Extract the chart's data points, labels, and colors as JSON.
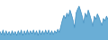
{
  "values": [
    55,
    35,
    65,
    30,
    60,
    35,
    55,
    30,
    60,
    35,
    55,
    30,
    60,
    35,
    65,
    30,
    60,
    35,
    65,
    35,
    60,
    40,
    65,
    35,
    60,
    30,
    65,
    35,
    60,
    35,
    65,
    40,
    65,
    35,
    60,
    35,
    60,
    45,
    70,
    50,
    90,
    130,
    160,
    140,
    175,
    155,
    195,
    165,
    130,
    80,
    175,
    200,
    220,
    190,
    155,
    110,
    175,
    150,
    195,
    165,
    130,
    90,
    155,
    135,
    170,
    150,
    120,
    95,
    140,
    125,
    155,
    135
  ],
  "line_color": "#3a8bbf",
  "fill_color": "#6aaed6",
  "background_color": "#ffffff",
  "ylim_min": 0,
  "ylim_max": 260
}
